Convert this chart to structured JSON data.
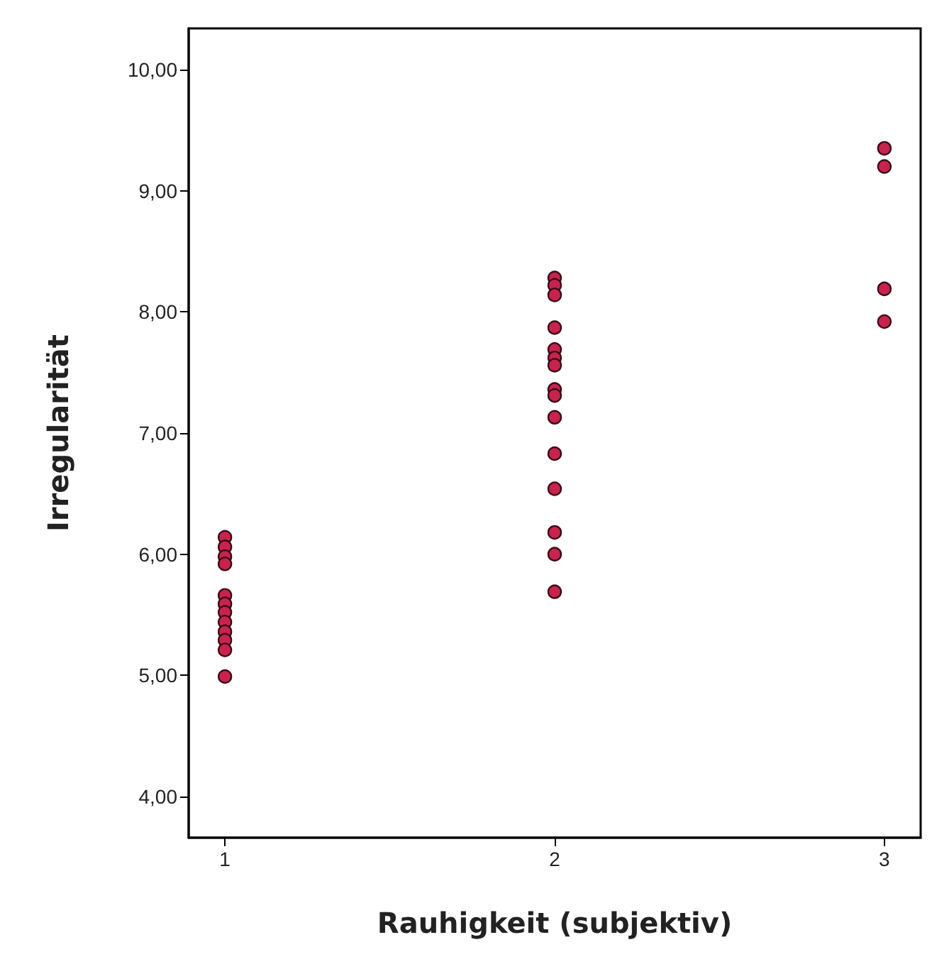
{
  "chart_data": {
    "type": "scatter",
    "xlabel": "Rauhigkeit (subjektiv)",
    "ylabel": "Irregularität",
    "x": [
      1,
      1,
      1,
      1,
      1,
      1,
      1,
      1,
      1,
      1,
      1,
      1,
      2,
      2,
      2,
      2,
      2,
      2,
      2,
      2,
      2,
      2,
      2,
      2,
      2,
      2,
      2,
      3,
      3,
      3,
      3
    ],
    "values": [
      6.14,
      6.06,
      5.98,
      5.92,
      5.66,
      5.59,
      5.52,
      5.44,
      5.36,
      5.29,
      5.21,
      4.99,
      8.28,
      8.22,
      8.14,
      7.87,
      7.69,
      7.62,
      7.56,
      7.36,
      7.31,
      7.13,
      6.83,
      6.54,
      6.18,
      6.0,
      5.69,
      9.35,
      9.2,
      8.19,
      7.92
    ],
    "color": "#c8234f",
    "marker": "circle",
    "xlim": [
      0.89,
      3.11
    ],
    "xticks": [
      1,
      2,
      3
    ],
    "ylim": [
      3.66,
      10.34
    ],
    "yticks": [
      {
        "value": 4,
        "label": "4,00"
      },
      {
        "value": 5,
        "label": "5,00"
      },
      {
        "value": 6,
        "label": "6,00"
      },
      {
        "value": 7,
        "label": "7,00"
      },
      {
        "value": 8,
        "label": "8,00"
      },
      {
        "value": 9,
        "label": "9,00"
      },
      {
        "value": 10,
        "label": "10,00"
      }
    ]
  }
}
